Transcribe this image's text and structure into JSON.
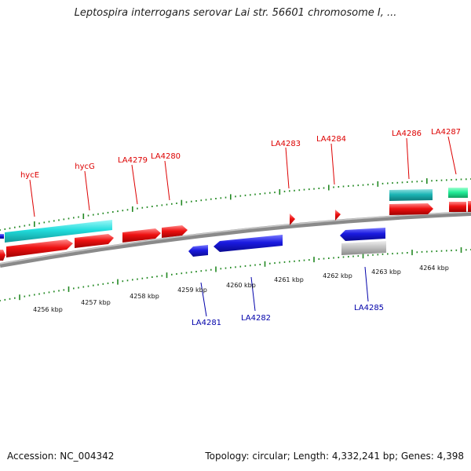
{
  "title": "Leptospira interrogans serovar Lai str. 56601 chromosome I, ...",
  "footer": {
    "accession": "Accession: NC_004342",
    "summary": "Topology: circular; Length: 4,332,241 bp; Genes: 4,398"
  },
  "colors": {
    "forward_cds": "#ee1111",
    "reverse_cds": "#1a1ae0",
    "rna": "#22cccc",
    "other": "#bbbbbb",
    "misc": "#22ee99",
    "label_forward": "#dd0000",
    "label_reverse": "#0000aa",
    "tick": "#228822",
    "backbone": "#808080"
  },
  "scale_labels": [
    "4256 kbp",
    "4257 kbp",
    "4258 kbp",
    "4259 kbp",
    "4260 kbp",
    "4261 kbp",
    "4262 kbp",
    "4263 kbp",
    "4264 kbp"
  ],
  "gene_labels_forward": [
    "hycE",
    "hycG",
    "LA4279",
    "LA4280",
    "LA4283",
    "LA4284",
    "LA4286",
    "LA4287"
  ],
  "gene_labels_reverse": [
    "LA4281",
    "LA4282",
    "LA4285"
  ]
}
